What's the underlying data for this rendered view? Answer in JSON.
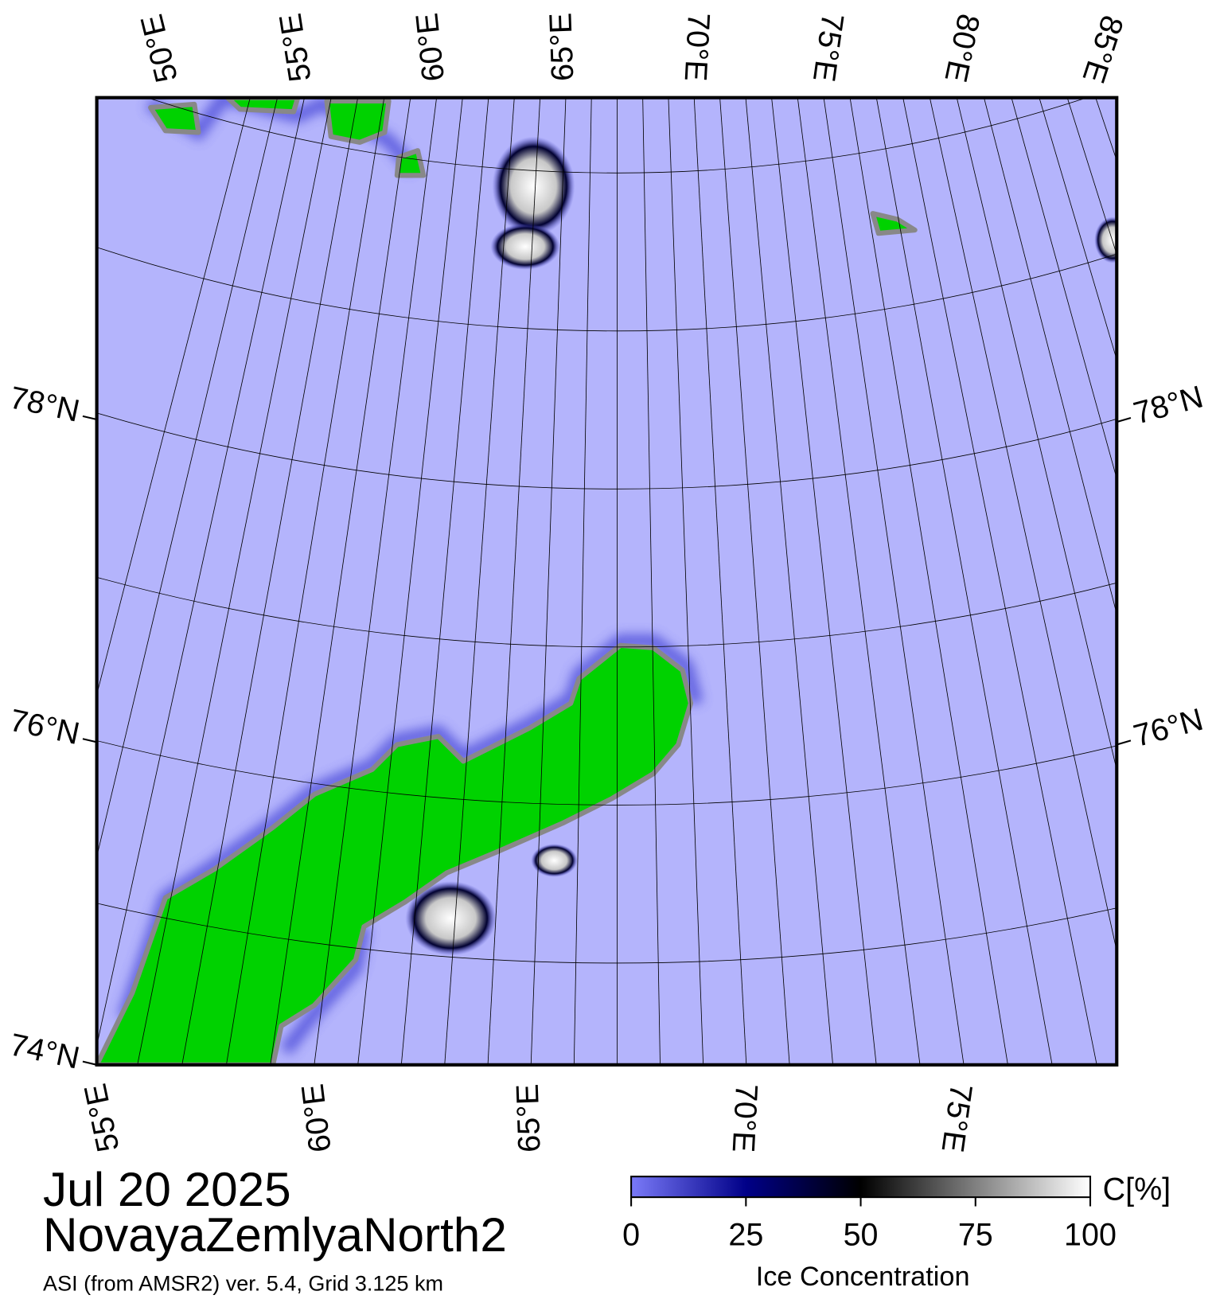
{
  "map": {
    "title": "Jul 20 2025",
    "region": "NovayaZemlyaNorth2",
    "note": "ASI (from AMSR2) ver. 5.4,  Grid 3.125 km",
    "top_lon_labels": [
      "50°E",
      "55°E",
      "60°E",
      "65°E",
      "70°E",
      "75°E",
      "80°E",
      "85°E"
    ],
    "bottom_lon_labels": [
      "55°E",
      "60°E",
      "65°E",
      "70°E",
      "75°E"
    ],
    "left_lat_labels": [
      "78°N",
      "76°N",
      "74°N"
    ],
    "right_lat_labels": [
      "78°N",
      "76°N"
    ]
  },
  "colorbar": {
    "unit": "C[%]",
    "label": "Ice Concentration",
    "range": [
      0,
      100
    ],
    "ticks": [
      0,
      25,
      50,
      75,
      100
    ]
  }
}
